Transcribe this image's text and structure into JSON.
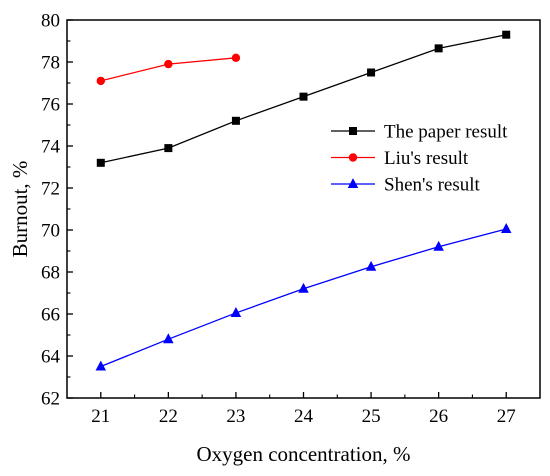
{
  "chart_data": {
    "type": "line",
    "xlabel": "Oxygen concentration, %",
    "ylabel": "Burnout, %",
    "xlim": [
      20.5,
      27.5
    ],
    "ylim": [
      62,
      80
    ],
    "xticks": [
      21,
      22,
      23,
      24,
      25,
      26,
      27
    ],
    "yticks": [
      62,
      64,
      66,
      68,
      70,
      72,
      74,
      76,
      78,
      80
    ],
    "grid": false,
    "legend_position": "right",
    "series": [
      {
        "name": "The paper result",
        "color": "#000000",
        "marker": "square",
        "x": [
          21,
          22,
          23,
          24,
          25,
          26,
          27
        ],
        "values": [
          73.2,
          73.9,
          75.2,
          76.35,
          77.5,
          78.65,
          79.3
        ]
      },
      {
        "name": "Liu's result",
        "color": "#ff0000",
        "marker": "circle",
        "x": [
          21,
          22,
          23
        ],
        "values": [
          77.1,
          77.9,
          78.2
        ]
      },
      {
        "name": "Shen's result",
        "color": "#0000ff",
        "marker": "triangle",
        "x": [
          21,
          22,
          23,
          24,
          25,
          26,
          27
        ],
        "values": [
          63.5,
          64.8,
          66.05,
          67.2,
          68.25,
          69.2,
          70.05
        ]
      }
    ]
  }
}
